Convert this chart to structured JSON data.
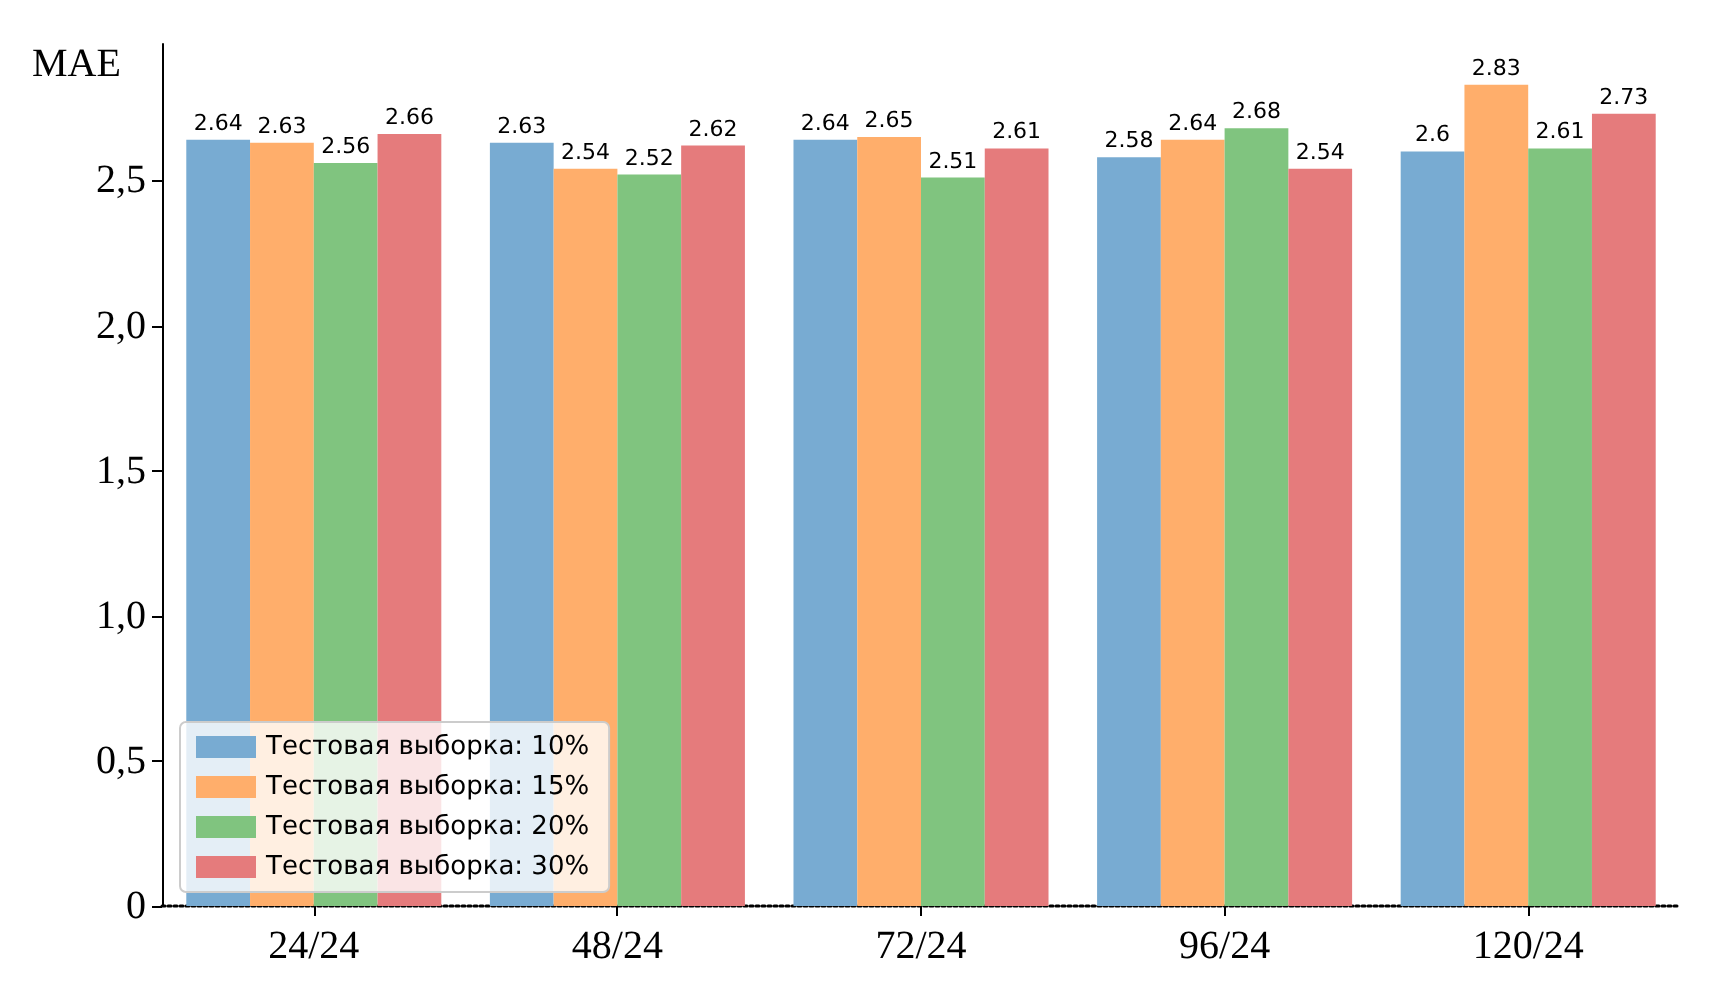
{
  "chart_data": {
    "type": "bar",
    "ylabel": "MAE",
    "categories": [
      "24/24",
      "48/24",
      "72/24",
      "96/24",
      "120/24"
    ],
    "series": [
      {
        "name": "Тестовая выборка: 10%",
        "color": "#78abd2",
        "values": [
          2.64,
          2.63,
          2.64,
          2.58,
          2.6
        ]
      },
      {
        "name": "Тестовая выборка: 15%",
        "color": "#ffae6b",
        "values": [
          2.63,
          2.54,
          2.65,
          2.64,
          2.83
        ]
      },
      {
        "name": "Тестовая выборка: 20%",
        "color": "#80c47f",
        "values": [
          2.56,
          2.52,
          2.51,
          2.68,
          2.61
        ]
      },
      {
        "name": "Тестовая выборка: 30%",
        "color": "#e57b7c",
        "values": [
          2.66,
          2.62,
          2.61,
          2.54,
          2.73
        ]
      }
    ],
    "ylim": [
      0,
      2.97
    ],
    "yticks": [
      0,
      {
        "value": 0.5,
        "label": "0,5"
      },
      {
        "value": 1,
        "label": "1,0"
      },
      {
        "value": 1.5,
        "label": "1,5"
      },
      {
        "value": 2,
        "label": "2,0"
      },
      {
        "value": 2.5,
        "label": "2,5"
      }
    ],
    "data_labels": true,
    "legend": "bottom left",
    "grid": false
  }
}
